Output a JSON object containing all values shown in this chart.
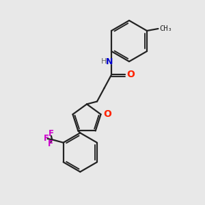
{
  "background_color": "#e8e8e8",
  "bond_color": "#222222",
  "nitrogen_color": "#0000cc",
  "oxygen_color": "#ff2200",
  "fluorine_color": "#cc00cc",
  "hydrogen_color": "#666666",
  "line_width": 1.6,
  "figsize": [
    3.0,
    3.0
  ],
  "dpi": 100,
  "xlim": [
    0,
    10
  ],
  "ylim": [
    0,
    10
  ]
}
